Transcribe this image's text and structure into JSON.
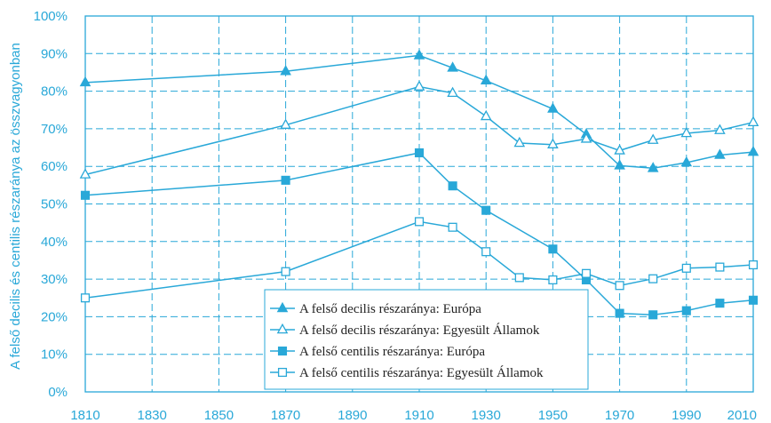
{
  "chart_data": {
    "type": "line",
    "title": "",
    "xlabel": "",
    "ylabel": "A felső decilis és centilis részaránya az összvagyonban",
    "xlim": [
      1810,
      2010
    ],
    "ylim": [
      0,
      100
    ],
    "x_ticks": [
      "1810",
      "1830",
      "1850",
      "1870",
      "1890",
      "1910",
      "1930",
      "1950",
      "1970",
      "1990",
      "2010"
    ],
    "y_ticks": [
      "0%",
      "10%",
      "20%",
      "30%",
      "40%",
      "50%",
      "60%",
      "70%",
      "80%",
      "90%",
      "100%"
    ],
    "grid": true,
    "legend_position": "bottom-right",
    "colors": {
      "line": "#29a8d8",
      "axis_text": "#29a8d8",
      "legend_text": "#222222"
    },
    "series": [
      {
        "name": "A felső decilis részaránya: Európa",
        "marker": "filled-triangle",
        "points": [
          [
            1810,
            82.3
          ],
          [
            1870,
            85.3
          ],
          [
            1910,
            89.5
          ],
          [
            1920,
            86.2
          ],
          [
            1930,
            82.8
          ],
          [
            1950,
            75.3
          ],
          [
            1960,
            68.5
          ],
          [
            1970,
            60.2
          ],
          [
            1980,
            59.5
          ],
          [
            1990,
            61.0
          ],
          [
            2000,
            63.0
          ],
          [
            2010,
            63.8
          ]
        ]
      },
      {
        "name": "A felső decilis részaránya: Egyesült Államok",
        "marker": "open-triangle",
        "points": [
          [
            1810,
            57.8
          ],
          [
            1870,
            71.0
          ],
          [
            1910,
            81.2
          ],
          [
            1920,
            79.5
          ],
          [
            1930,
            73.3
          ],
          [
            1940,
            66.2
          ],
          [
            1950,
            65.8
          ],
          [
            1960,
            67.3
          ],
          [
            1970,
            64.2
          ],
          [
            1980,
            67.0
          ],
          [
            1990,
            68.8
          ],
          [
            2000,
            69.6
          ],
          [
            2010,
            71.7
          ]
        ]
      },
      {
        "name": "A felső centilis részaránya: Európa",
        "marker": "filled-square",
        "points": [
          [
            1810,
            52.3
          ],
          [
            1870,
            56.3
          ],
          [
            1910,
            63.6
          ],
          [
            1920,
            54.8
          ],
          [
            1930,
            48.3
          ],
          [
            1950,
            38.0
          ],
          [
            1960,
            29.8
          ],
          [
            1970,
            20.9
          ],
          [
            1980,
            20.5
          ],
          [
            1990,
            21.6
          ],
          [
            2000,
            23.6
          ],
          [
            2010,
            24.4
          ]
        ]
      },
      {
        "name": "A felső centilis részaránya: Egyesült Államok",
        "marker": "open-square",
        "points": [
          [
            1810,
            25.0
          ],
          [
            1870,
            32.0
          ],
          [
            1910,
            45.3
          ],
          [
            1920,
            43.8
          ],
          [
            1930,
            37.3
          ],
          [
            1940,
            30.4
          ],
          [
            1950,
            29.8
          ],
          [
            1960,
            31.5
          ],
          [
            1970,
            28.3
          ],
          [
            1980,
            30.1
          ],
          [
            1990,
            32.9
          ],
          [
            2000,
            33.2
          ],
          [
            2010,
            33.8
          ]
        ]
      }
    ]
  }
}
